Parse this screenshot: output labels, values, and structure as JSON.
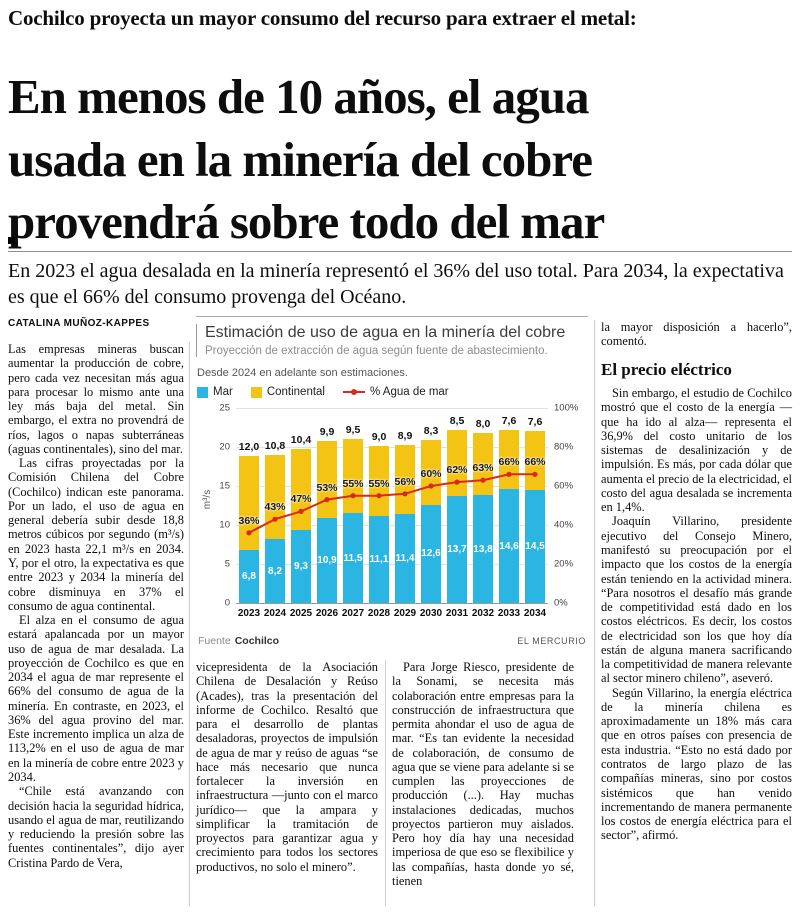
{
  "kicker": "Cochilco proyecta un mayor consumo del recurso para extraer el metal:",
  "headline": {
    "lines": [
      "En menos de 10 años, el agua",
      "usada en la minería del cobre",
      "provendrá sobre todo del mar"
    ]
  },
  "deck": "En 2023 el agua desalada en la minería representó el 36% del uso total. Para 2034, la expectativa es que el 66% del consumo provenga del Océano.",
  "byline": "CATALINA MUÑOZ-KAPPES",
  "columns": {
    "col1": [
      "Las empresas mineras buscan aumentar la producción de cobre, pero cada vez necesitan más agua para procesar lo mismo ante una ley más baja del metal. Sin embargo, el extra no provendrá de ríos, lagos o napas subterráneas (aguas continentales), sino del mar.",
      "Las cifras proyectadas por la Comisión Chilena del Cobre (Cochilco) indican este panorama. Por un lado, el uso de agua en general debería subir desde 18,8 metros cúbicos por segundo (m³/s) en 2023 hasta 22,1 m³/s en 2034. Y, por el otro, la expectativa es que entre 2023 y 2034 la minería del cobre disminuya en 37% el consumo de agua continental.",
      "El alza en el consumo de agua estará apalancada por un mayor uso de agua de mar desalada. La proyección de Cochilco es que en 2034 el agua de mar represente el 66% del consumo de agua de la minería. En contraste, en 2023, el 36% del agua provino del mar. Este incremento implica un alza de 113,2% en el uso de agua de mar en la minería de cobre entre 2023 y 2034.",
      "“Chile está avanzando con decisión hacia la seguridad hídrica, usando el agua de mar, reutilizando y reduciendo la presión sobre las fuentes continentales”, dijo ayer Cristina Pardo de Vera,"
    ],
    "col2": [
      "vicepresidenta de la Asociación Chilena de Desalación y Reúso (Acades), tras la presentación del informe de Cochilco. Resaltó que para el desarrollo de plantas desaladoras, proyectos de impulsión de agua de mar y reúso de aguas “se hace más necesario que nunca fortalecer la inversión en infraestructura —junto con el marco jurídico— que la ampara y simplificar la tramitación de proyectos para garantizar agua y crecimiento para todos los sectores productivos, no solo el minero”."
    ],
    "col3": [
      "Para Jorge Riesco, presidente de la Sonami, se necesita más colaboración entre empresas para la construcción de infraestructura que permita ahondar el uso de agua de mar. “Es tan evidente la necesidad de colaboración, de consumo de agua que se viene para adelante si se cumplen las proyecciones de producción (...). Hay muchas instalaciones dedicadas, muchos proyectos partieron muy aislados. Pero hoy día hay una necesidad imperiosa de que eso se flexibilice y las compañías, hasta donde yo sé, tienen"
    ],
    "col4_lead": "la mayor disposición a hacerlo”, comentó.",
    "col4_heading": "El precio eléctrico",
    "col4": [
      "Sin embargo, el estudio de Cochilco mostró que el costo de la energía —que ha ido al alza— representa el 36,9% del costo unitario de los sistemas de desalinización y de impulsión. Es más, por cada dólar que aumenta el precio de la electricidad, el costo del agua desalada se incrementa en 1,4%.",
      "Joaquín Villarino, presidente ejecutivo del Consejo Minero, manifestó su preocupación por el impacto que los costos de la energía están teniendo en la actividad minera. “Para nosotros el desafío más grande de competitividad está dado en los costos eléctricos. Es decir, los costos de electricidad son los que hoy día están de alguna manera sacrificando la competitividad de manera relevante al sector minero chileno”, aseveró.",
      "Según Villarino, la energía eléctrica de la minería chilena es aproximadamente un 18% más cara que en otros países con presencia de esta industria. “Esto no está dado por contratos de largo plazo de las compañías mineras, sino por costos sistémicos que han venido incrementando de manera permanente los costos de energía eléctrica para el sector”, afirmó."
    ]
  },
  "chart": {
    "title": "Estimación de uso de agua en la minería del cobre",
    "subtitle": "Proyección de extracción de agua según fuente de abastecimiento.",
    "note": "Desde 2024 en adelante son estimaciones.",
    "legend": {
      "mar": "Mar",
      "continental": "Continental",
      "line": "% Agua de mar"
    },
    "y_left_unit": "m³/s",
    "source_label": "Fuente",
    "source": "Cochilco",
    "credit": "EL MERCURIO"
  },
  "chart_data": {
    "type": "bar",
    "subtype": "stacked-bars-with-percent-line",
    "title": "Estimación de uso de agua en la minería del cobre",
    "categories": [
      "2023",
      "2024",
      "2025",
      "2026",
      "2027",
      "2028",
      "2029",
      "2030",
      "2031",
      "2032",
      "2033",
      "2034"
    ],
    "series": [
      {
        "name": "Mar",
        "color": "#2bb5e2",
        "values": [
          6.8,
          8.2,
          9.3,
          10.9,
          11.5,
          11.1,
          11.4,
          12.6,
          13.7,
          13.8,
          14.6,
          14.5
        ]
      },
      {
        "name": "Continental",
        "color": "#f4c414",
        "values": [
          12.0,
          10.8,
          10.4,
          9.9,
          9.5,
          9.0,
          8.9,
          8.3,
          8.5,
          8.0,
          7.6,
          7.6
        ]
      }
    ],
    "line_series": {
      "name": "% Agua de mar",
      "color": "#d8291e",
      "axis": "right",
      "values": [
        36,
        43,
        47,
        53,
        55,
        55,
        56,
        60,
        62,
        63,
        66,
        66
      ]
    },
    "ylabel": "m³/s",
    "ylim_left": [
      0,
      25
    ],
    "ylim_right": [
      0,
      100
    ],
    "y_left_ticks": [
      0,
      5,
      10,
      15,
      20,
      25
    ],
    "y_right_ticks": [
      "0%",
      "20%",
      "40%",
      "60%",
      "80%",
      "100%"
    ],
    "value_decimal_separator": ",",
    "grid": true,
    "legend_position": "top"
  }
}
